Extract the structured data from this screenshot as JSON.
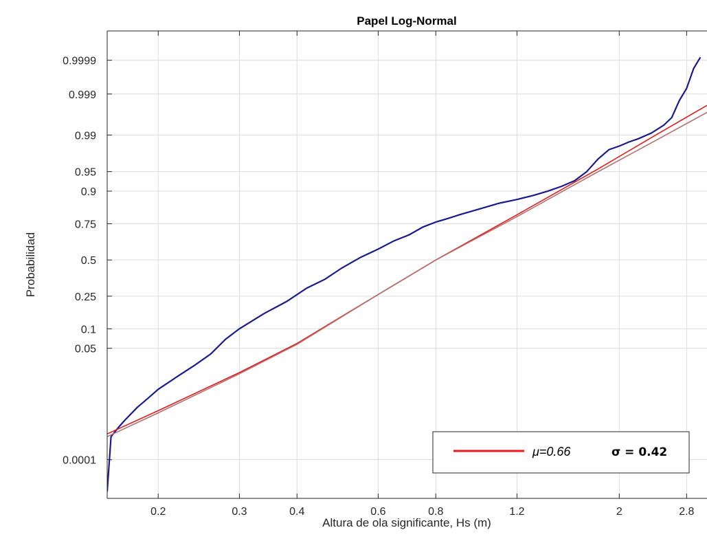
{
  "chart_data": {
    "type": "line",
    "title": "Papel Log-Normal",
    "xlabel": "Altura de ola significante, Hs (m)",
    "ylabel": "Probabilidad",
    "x_scale": "log",
    "y_scale": "normal-probability",
    "xlim": [
      0.155,
      3.1
    ],
    "ylim": [
      4.5e-06,
      0.99999
    ],
    "x_ticks": [
      0.2,
      0.3,
      0.4,
      0.6,
      0.8,
      1.2,
      2,
      2.8
    ],
    "x_tick_labels": [
      "0.2",
      "0.3",
      "0.4",
      "0.6",
      "0.8",
      "1.2",
      "2",
      "2.8"
    ],
    "y_ticks": [
      0.0001,
      0.05,
      0.1,
      0.25,
      0.5,
      0.75,
      0.9,
      0.95,
      0.99,
      0.999,
      0.9999
    ],
    "y_tick_labels": [
      "0.0001",
      "0.05",
      "0.1",
      "0.25",
      "0.5",
      "0.75",
      "0.9",
      "0.95",
      "0.99",
      "0.999",
      "0.9999"
    ],
    "grid": true,
    "legend": {
      "placement": "bottom-right",
      "mu_label": "μ=0.66",
      "sigma_label": "σ = 0.42",
      "color": "#e41a1c"
    },
    "series": [
      {
        "kind": "empirical",
        "color": "#1a1a8c",
        "x": [
          0.155,
          0.158,
          0.165,
          0.17,
          0.18,
          0.19,
          0.2,
          0.22,
          0.24,
          0.26,
          0.28,
          0.3,
          0.34,
          0.38,
          0.42,
          0.46,
          0.5,
          0.55,
          0.6,
          0.65,
          0.7,
          0.75,
          0.8,
          0.85,
          0.9,
          1.0,
          1.1,
          1.2,
          1.3,
          1.4,
          1.5,
          1.6,
          1.7,
          1.8,
          1.9,
          2.0,
          2.1,
          2.2,
          2.35,
          2.5,
          2.6,
          2.7,
          2.8,
          2.9,
          3.0
        ],
        "y": [
          8e-06,
          0.0005,
          0.001,
          0.0015,
          0.003,
          0.005,
          0.008,
          0.015,
          0.025,
          0.04,
          0.07,
          0.1,
          0.16,
          0.22,
          0.3,
          0.36,
          0.44,
          0.52,
          0.58,
          0.64,
          0.68,
          0.73,
          0.76,
          0.78,
          0.8,
          0.83,
          0.855,
          0.87,
          0.885,
          0.9,
          0.915,
          0.93,
          0.95,
          0.97,
          0.98,
          0.983,
          0.986,
          0.988,
          0.991,
          0.994,
          0.996,
          0.9985,
          0.9993,
          0.99982,
          0.99992
        ]
      },
      {
        "kind": "fit",
        "color": "#e41a1c",
        "mu": 0.66,
        "sigma": 0.42,
        "x": [
          0.155,
          0.2,
          0.3,
          0.4,
          0.6,
          0.8,
          1.2,
          1.8,
          2.4,
          3.1
        ],
        "y": [
          0.0006,
          0.0025,
          0.018,
          0.06,
          0.26,
          0.5,
          0.8,
          0.955,
          0.99,
          0.998
        ]
      },
      {
        "kind": "fit-alt",
        "color": "#b07070",
        "x": [
          0.155,
          0.2,
          0.3,
          0.4,
          0.6,
          0.8,
          1.2,
          1.8,
          2.4,
          3.1
        ],
        "y": [
          0.0005,
          0.0022,
          0.017,
          0.058,
          0.26,
          0.5,
          0.79,
          0.95,
          0.987,
          0.997
        ]
      }
    ]
  }
}
